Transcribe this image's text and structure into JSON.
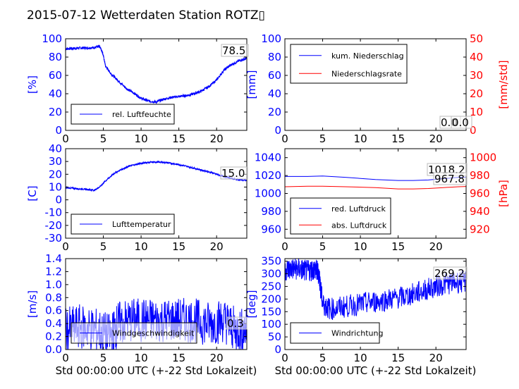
{
  "title": "2015-07-12 Wetterdaten Station ROTZ▯",
  "colors": {
    "left_axis": "#0000ff",
    "right_axis": "#ff0000",
    "frame": "#000000"
  },
  "chart_data": [
    {
      "id": "humidity",
      "type": "line",
      "ylabel": "[%]",
      "xlim": [
        0,
        24
      ],
      "ylim": [
        0,
        100
      ],
      "xticks": [
        0,
        5,
        10,
        15,
        20
      ],
      "yticks": [
        0,
        20,
        40,
        60,
        80,
        100
      ],
      "series": [
        {
          "name": "rel. Luftfeuchte",
          "color": "#0000ff",
          "noise": 1.5,
          "x": [
            0,
            1,
            2,
            3,
            4,
            4.5,
            4.9,
            5.3,
            6,
            7,
            8,
            9,
            10,
            11,
            12,
            13,
            14,
            15,
            16,
            17,
            18,
            19,
            20,
            21,
            22,
            23,
            24
          ],
          "y": [
            89,
            89.5,
            90,
            90,
            90.5,
            92,
            85,
            70,
            62,
            54,
            46,
            41,
            35,
            32,
            31,
            34,
            36,
            37,
            38,
            40,
            43,
            48,
            55,
            66,
            72,
            76,
            78.5
          ]
        }
      ],
      "legend": [
        "rel. Luftfeuchte"
      ],
      "annotation": "78.5"
    },
    {
      "id": "rain",
      "type": "line",
      "ylabel": "[mm]",
      "ylabel_right": "[mm/std]",
      "xlim": [
        0,
        24
      ],
      "ylim": [
        0,
        100
      ],
      "ylim_right": [
        0,
        50
      ],
      "xticks": [
        0,
        5,
        10,
        15,
        20
      ],
      "yticks": [
        0,
        20,
        40,
        60,
        80,
        100
      ],
      "yticks_right": [
        0,
        10,
        20,
        30,
        40,
        50
      ],
      "series": [
        {
          "name": "kum. Niederschlag",
          "color": "#0000ff",
          "x": [
            0,
            24
          ],
          "y": [
            0,
            0
          ]
        },
        {
          "name": "Niederschlagsrate",
          "color": "#ff0000",
          "axis": "right",
          "x": [
            0,
            24
          ],
          "y": [
            0,
            0
          ]
        }
      ],
      "legend": [
        "kum. Niederschlag",
        "Niederschlagsrate"
      ],
      "annotation": "0.0",
      "annotation2": "0.0"
    },
    {
      "id": "temperature",
      "type": "line",
      "ylabel": "[C]",
      "xlim": [
        0,
        24
      ],
      "ylim": [
        -30,
        40
      ],
      "xticks": [
        0,
        5,
        10,
        15,
        20
      ],
      "yticks": [
        -30,
        -20,
        -10,
        0,
        10,
        20,
        30,
        40
      ],
      "series": [
        {
          "name": "Lufttemperatur",
          "color": "#0000ff",
          "noise": 0.6,
          "x": [
            0,
            1,
            2,
            3,
            3.8,
            4.5,
            5.5,
            6.5,
            7.5,
            8.5,
            9.5,
            10.5,
            11.5,
            12.5,
            13.5,
            14.5,
            15.5,
            16.5,
            17.5,
            18.5,
            19.5,
            20.5,
            21.5,
            22.5,
            24
          ],
          "y": [
            9.5,
            9,
            8.5,
            8,
            7.5,
            10,
            16,
            21,
            24,
            26.5,
            28,
            29,
            29.5,
            29.5,
            29,
            28,
            27,
            25.5,
            24,
            22.5,
            21,
            19,
            17.5,
            16,
            15
          ]
        }
      ],
      "legend": [
        "Lufttemperatur"
      ],
      "annotation": "15.0"
    },
    {
      "id": "pressure",
      "type": "line",
      "ylabel_right": "[hPa]",
      "xlim": [
        0,
        24
      ],
      "ylim": [
        950,
        1050
      ],
      "ylim_right": [
        910,
        1010
      ],
      "xticks": [
        0,
        5,
        10,
        15,
        20
      ],
      "yticks": [
        960,
        980,
        1000,
        1020,
        1040
      ],
      "yticks_right": [
        920,
        940,
        960,
        980,
        1000
      ],
      "series": [
        {
          "name": "red. Luftdruck",
          "color": "#0000ff",
          "x": [
            0,
            3,
            5,
            8,
            12,
            15,
            17,
            19,
            21,
            23,
            24
          ],
          "y": [
            1019,
            1019,
            1019.5,
            1018,
            1015.5,
            1014.5,
            1014.5,
            1015,
            1016.5,
            1018,
            1018.2
          ]
        },
        {
          "name": "abs. Luftdruck",
          "color": "#ff0000",
          "axis": "right",
          "x": [
            0,
            3,
            5,
            8,
            12,
            15,
            17,
            19,
            21,
            23,
            24
          ],
          "y": [
            967.5,
            968,
            968,
            967.5,
            966.5,
            965,
            965,
            965.5,
            966.5,
            967.5,
            967.8
          ]
        }
      ],
      "legend": [
        "red. Luftdruck",
        "abs. Luftdruck"
      ],
      "annotation": "1018.2",
      "annotation2": "967.8"
    },
    {
      "id": "wind_speed",
      "type": "line",
      "ylabel": "[m/s]",
      "xlabel": "Std 00:00:00 UTC (+-22 Std Lokalzeit)",
      "xlim": [
        0,
        24
      ],
      "ylim": [
        0,
        1.4
      ],
      "xticks": [
        0,
        5,
        10,
        15,
        20
      ],
      "yticks": [
        0.0,
        0.2,
        0.4,
        0.6,
        0.8,
        1.0,
        1.2,
        1.4
      ],
      "series": [
        {
          "name": "Windgeschwindigkeit",
          "color": "#0000ff",
          "noise": 0.35,
          "x": [
            0,
            2,
            4,
            6,
            7,
            9,
            11,
            13,
            15,
            17,
            19,
            21,
            22.5,
            24
          ],
          "y": [
            0.3,
            0.35,
            0.3,
            0.2,
            0.4,
            0.45,
            0.45,
            0.45,
            0.45,
            0.45,
            0.4,
            0.45,
            0.3,
            0.3
          ]
        }
      ],
      "legend": [
        "Windgeschwindigkeit"
      ],
      "annotation": "0.3"
    },
    {
      "id": "wind_dir",
      "type": "line",
      "ylabel": "[deg]",
      "xlabel": "Std 00:00:00 UTC (+-22 Std Lokalzeit)",
      "xlim": [
        0,
        24
      ],
      "ylim": [
        0,
        360
      ],
      "xticks": [
        0,
        5,
        10,
        15,
        20
      ],
      "yticks": [
        0,
        50,
        100,
        150,
        200,
        250,
        300,
        350
      ],
      "series": [
        {
          "name": "Windrichtung",
          "color": "#0000ff",
          "noise": 45,
          "x": [
            0,
            1,
            2,
            3,
            4,
            4.5,
            5,
            6,
            8,
            10,
            12,
            14,
            16,
            18,
            20,
            22,
            24
          ],
          "y": [
            315,
            320,
            318,
            310,
            320,
            300,
            180,
            160,
            170,
            180,
            190,
            200,
            210,
            230,
            250,
            265,
            269
          ]
        }
      ],
      "legend": [
        "Windrichtung"
      ],
      "annotation": "269.2"
    }
  ]
}
